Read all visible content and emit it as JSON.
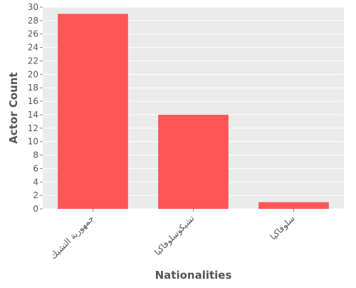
{
  "chart_data": {
    "type": "bar",
    "title": "",
    "xlabel": "Nationalities",
    "ylabel": "Actor Count",
    "categories": [
      "جمهورية التشيك",
      "تشيكوسلوفاكيا",
      "سلوفاكيا"
    ],
    "values": [
      29,
      14,
      1
    ],
    "ylim": [
      0,
      30
    ],
    "yticks": [
      0,
      2,
      4,
      6,
      8,
      10,
      12,
      14,
      16,
      18,
      20,
      22,
      24,
      26,
      28,
      30
    ],
    "grid": true,
    "legend": "none",
    "colors": {
      "bar": "#FF5555",
      "panel": "#EBEBEB",
      "grid": "#FFFFFF",
      "text": "#555555"
    }
  }
}
